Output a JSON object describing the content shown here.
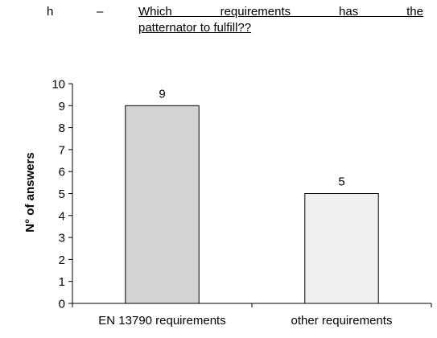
{
  "question": {
    "letter": "h",
    "dash": "–",
    "line1": "Which requirements has the",
    "line2": "patternator to fulfill??"
  },
  "chart_data": {
    "type": "bar",
    "categories": [
      "EN 13790 requirements",
      "other requirements"
    ],
    "values": [
      9,
      5
    ],
    "data_labels": [
      "9",
      "5"
    ],
    "title": "",
    "xlabel": "",
    "ylabel": "N° of answers",
    "ylim": [
      0,
      10
    ],
    "yticks": [
      0,
      1,
      2,
      3,
      4,
      5,
      6,
      7,
      8,
      9,
      10
    ],
    "grid": false,
    "legend": "none",
    "bar_colors": [
      "#d3d3d3",
      "#f0f0f0"
    ],
    "bar_edge_color": "#000000"
  }
}
